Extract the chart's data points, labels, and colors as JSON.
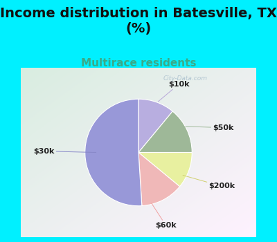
{
  "title": "Income distribution in Batesville, TX\n(%)",
  "subtitle": "Multirace residents",
  "slices": [
    {
      "label": "$10k",
      "value": 11,
      "color": "#b8aee0"
    },
    {
      "label": "$50k",
      "value": 14,
      "color": "#9eb898"
    },
    {
      "label": "$200k",
      "value": 11,
      "color": "#e8f0a0"
    },
    {
      "label": "$60k",
      "value": 13,
      "color": "#f0b8b8"
    },
    {
      "label": "$30k",
      "value": 51,
      "color": "#9898d8"
    }
  ],
  "background_color": "#00f0ff",
  "title_fontsize": 14,
  "subtitle_fontsize": 11,
  "subtitle_color": "#3aaa88",
  "label_fontsize": 8,
  "startangle": 90,
  "watermark": "City-Data.com"
}
